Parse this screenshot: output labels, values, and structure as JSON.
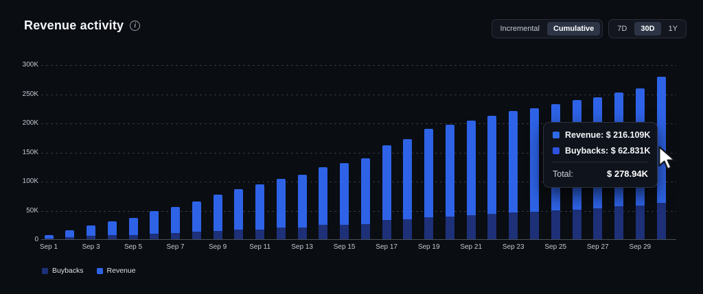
{
  "header": {
    "title": "Revenue activity"
  },
  "controls": {
    "mode": {
      "options": [
        "Incremental",
        "Cumulative"
      ],
      "selected": "Cumulative"
    },
    "range": {
      "options": [
        "7D",
        "30D",
        "1Y"
      ],
      "selected": "30D"
    }
  },
  "colors": {
    "background": "#0a0d12",
    "revenue_bar": "#2e63e7",
    "buybacks_bar": "#1d3078",
    "tooltip_revenue_swatch": "#2f6ae8",
    "tooltip_buybacks_swatch": "#2c52de"
  },
  "chart_data": {
    "type": "bar",
    "stacked": true,
    "title": "Revenue activity",
    "units": "thousands USD",
    "ylim": [
      0,
      300000
    ],
    "grid": "dashed horizontal",
    "categories": [
      "Sep 1",
      "Sep 2",
      "Sep 3",
      "Sep 4",
      "Sep 5",
      "Sep 6",
      "Sep 7",
      "Sep 8",
      "Sep 9",
      "Sep 10",
      "Sep 11",
      "Sep 12",
      "Sep 13",
      "Sep 14",
      "Sep 15",
      "Sep 16",
      "Sep 17",
      "Sep 18",
      "Sep 19",
      "Sep 20",
      "Sep 21",
      "Sep 22",
      "Sep 23",
      "Sep 24",
      "Sep 25",
      "Sep 26",
      "Sep 27",
      "Sep 28",
      "Sep 29",
      "Sep 30"
    ],
    "x_tick_labels": [
      "Sep 1",
      "Sep 3",
      "Sep 5",
      "Sep 7",
      "Sep 9",
      "Sep 11",
      "Sep 13",
      "Sep 15",
      "Sep 17",
      "Sep 19",
      "Sep 21",
      "Sep 23",
      "Sep 25",
      "Sep 27",
      "Sep 29"
    ],
    "y_ticks": [
      {
        "label": "300K",
        "value_k": 300
      },
      {
        "label": "250K",
        "value_k": 250
      },
      {
        "label": "200K",
        "value_k": 200
      },
      {
        "label": "150K",
        "value_k": 150
      },
      {
        "label": "100K",
        "value_k": 100
      },
      {
        "label": "50K",
        "value_k": 50
      },
      {
        "label": "0",
        "value_k": 0
      }
    ],
    "series": [
      {
        "name": "Buybacks",
        "color": "#1d3078",
        "values_k": [
          1.5,
          3,
          6,
          6.5,
          7.5,
          9.5,
          10.5,
          13,
          14.5,
          16,
          16.5,
          19.5,
          20.5,
          24.5,
          25,
          25.5,
          33,
          34,
          37.5,
          39,
          41,
          44,
          46,
          47,
          49,
          51,
          53,
          56,
          58,
          62.831
        ]
      },
      {
        "name": "Revenue",
        "color": "#2e63e7",
        "values_k": [
          5.5,
          12,
          17.5,
          24,
          29.5,
          38.5,
          44.5,
          52,
          62.5,
          70,
          77.5,
          83.5,
          90.5,
          98.5,
          106,
          113.5,
          128,
          138,
          152.5,
          158,
          163,
          168,
          174,
          178,
          183,
          188,
          191,
          196,
          201,
          216.109
        ]
      }
    ],
    "hovered_category": "Sep 30",
    "legend_position": "bottom-left"
  },
  "legend": {
    "items": [
      {
        "label": "Buybacks",
        "color": "#1d3078"
      },
      {
        "label": "Revenue",
        "color": "#2e63e7"
      }
    ]
  },
  "tooltip": {
    "rows": [
      {
        "text": "Revenue: $ 216.109K",
        "color": "#2f6ae8"
      },
      {
        "text": "Buybacks: $ 62.831K",
        "color": "#2c52de"
      }
    ],
    "total_label": "Total:",
    "total_value": "$ 278.94K"
  }
}
